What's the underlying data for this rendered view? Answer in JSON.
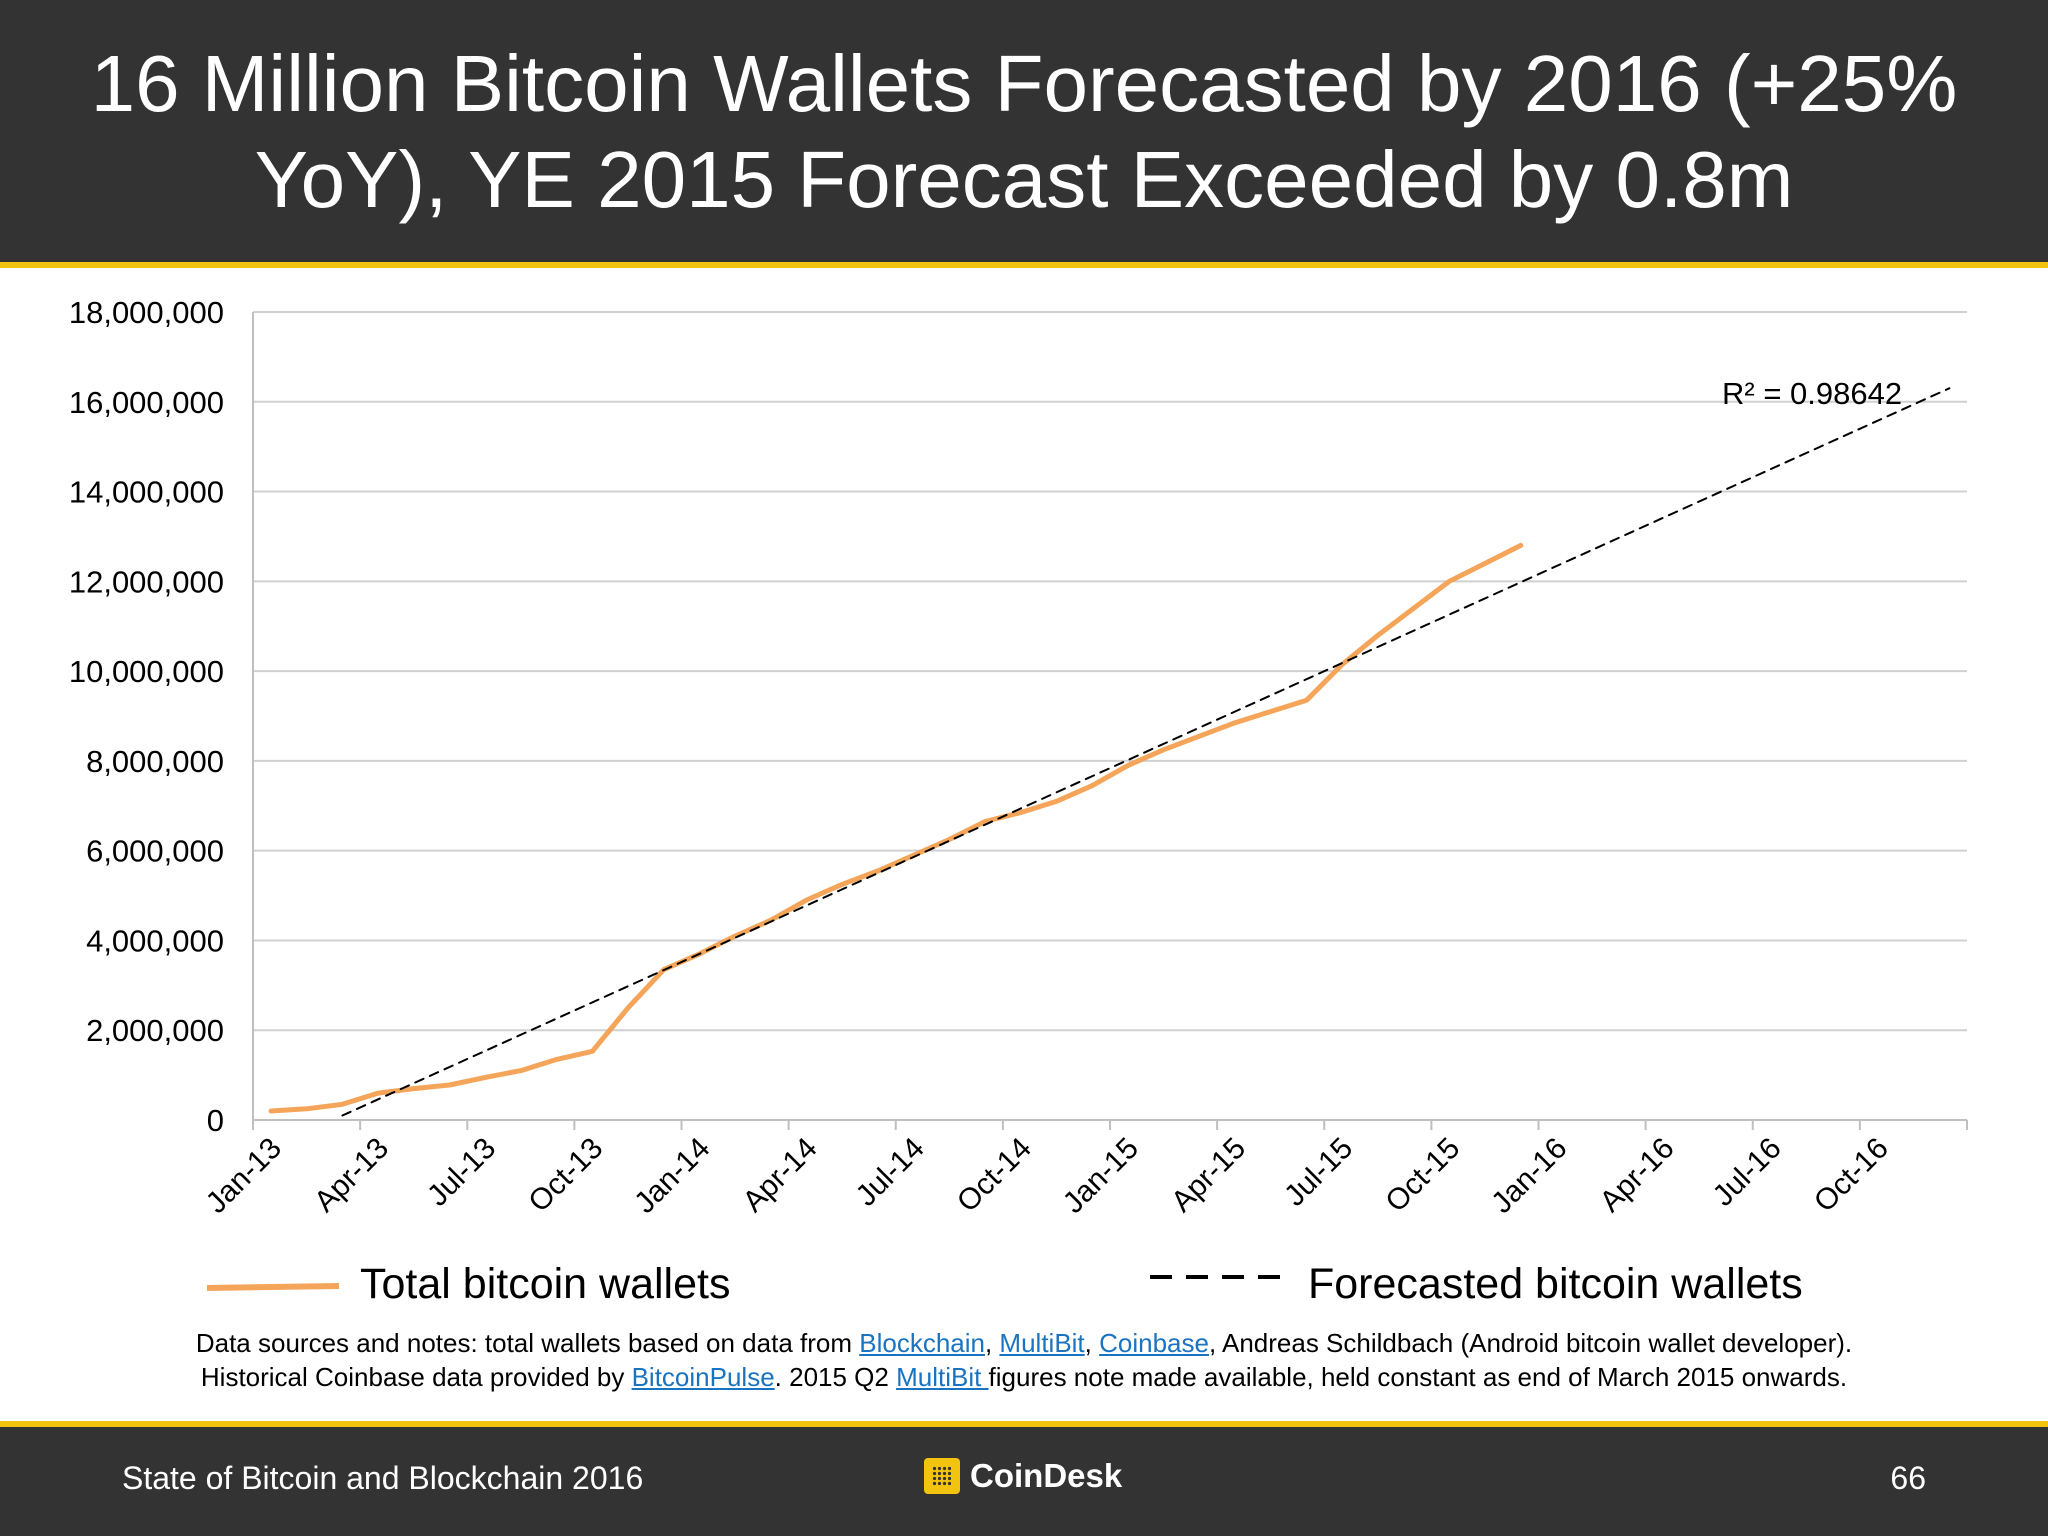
{
  "header": {
    "title": "16 Million Bitcoin Wallets Forecasted by 2016 (+25% YoY), YE 2015 Forecast Exceeded by 0.8m"
  },
  "chart_data": {
    "type": "line",
    "y_ticks": [
      "18,000,000",
      "16,000,000",
      "14,000,000",
      "12,000,000",
      "10,000,000",
      "8,000,000",
      "6,000,000",
      "4,000,000",
      "2,000,000",
      "0"
    ],
    "ylim": [
      0,
      18000000
    ],
    "x_ticks": [
      "Jan-13",
      "Apr-13",
      "Jul-13",
      "Oct-13",
      "Jan-14",
      "Apr-14",
      "Jul-14",
      "Oct-14",
      "Jan-15",
      "Apr-15",
      "Jul-15",
      "Oct-15",
      "Jan-16",
      "Apr-16",
      "Jul-16",
      "Oct-16"
    ],
    "xlim": [
      "2013-01",
      "2016-12"
    ],
    "grid": true,
    "series": [
      {
        "name": "Total bitcoin wallets",
        "color": "#f4a55a",
        "style": "solid",
        "points": [
          [
            "2013-01",
            200000
          ],
          [
            "2013-02",
            250000
          ],
          [
            "2013-03",
            350000
          ],
          [
            "2013-04",
            600000
          ],
          [
            "2013-05",
            700000
          ],
          [
            "2013-06",
            780000
          ],
          [
            "2013-07",
            950000
          ],
          [
            "2013-08",
            1100000
          ],
          [
            "2013-09",
            1350000
          ],
          [
            "2013-10",
            1530000
          ],
          [
            "2013-11",
            2500000
          ],
          [
            "2013-12",
            3350000
          ],
          [
            "2014-01",
            3700000
          ],
          [
            "2014-02",
            4100000
          ],
          [
            "2014-03",
            4450000
          ],
          [
            "2014-04",
            4900000
          ],
          [
            "2014-05",
            5250000
          ],
          [
            "2014-06",
            5550000
          ],
          [
            "2014-07",
            5900000
          ],
          [
            "2014-08",
            6250000
          ],
          [
            "2014-09",
            6650000
          ],
          [
            "2014-10",
            6850000
          ],
          [
            "2014-11",
            7100000
          ],
          [
            "2014-12",
            7450000
          ],
          [
            "2015-01",
            7900000
          ],
          [
            "2015-02",
            8250000
          ],
          [
            "2015-03",
            8550000
          ],
          [
            "2015-04",
            8850000
          ],
          [
            "2015-05",
            9100000
          ],
          [
            "2015-06",
            9350000
          ],
          [
            "2015-07",
            10150000
          ],
          [
            "2015-08",
            10800000
          ],
          [
            "2015-09",
            11400000
          ],
          [
            "2015-10",
            12000000
          ],
          [
            "2015-11",
            12400000
          ],
          [
            "2015-12",
            12800000
          ]
        ]
      },
      {
        "name": "Forecasted bitcoin wallets",
        "color": "#000000",
        "style": "dashed",
        "points": [
          [
            "2013-03",
            100000
          ],
          [
            "2016-12",
            16300000
          ]
        ]
      }
    ],
    "annotation": "R² = 0.98642",
    "legend_position": "bottom"
  },
  "legend": {
    "total_label": "Total bitcoin wallets",
    "forecast_label": "Forecasted bitcoin wallets"
  },
  "notes": {
    "line1_pre": "Data sources and notes: total wallets based on data from ",
    "link_blockchain": "Blockchain",
    "sep1": ", ",
    "link_multibit": "MultiBit",
    "sep2": ", ",
    "link_coinbase": "Coinbase",
    "line1_post": ", Andreas Schildbach (Android bitcoin wallet developer).",
    "line2_pre": "Historical Coinbase data provided by ",
    "link_bitcoinpulse": "BitcoinPulse",
    "line2_mid": ". 2015 Q2 ",
    "link_multibit2": "MultiBit ",
    "line2_post": "figures note made available, held constant as end of March 2015 onwards."
  },
  "footer": {
    "left": "State of Bitcoin and Blockchain 2016",
    "brand": "CoinDesk",
    "page_number": "66"
  },
  "colors": {
    "header_bg": "#333333",
    "accent": "#f3c40f",
    "link": "#1a73c0"
  }
}
